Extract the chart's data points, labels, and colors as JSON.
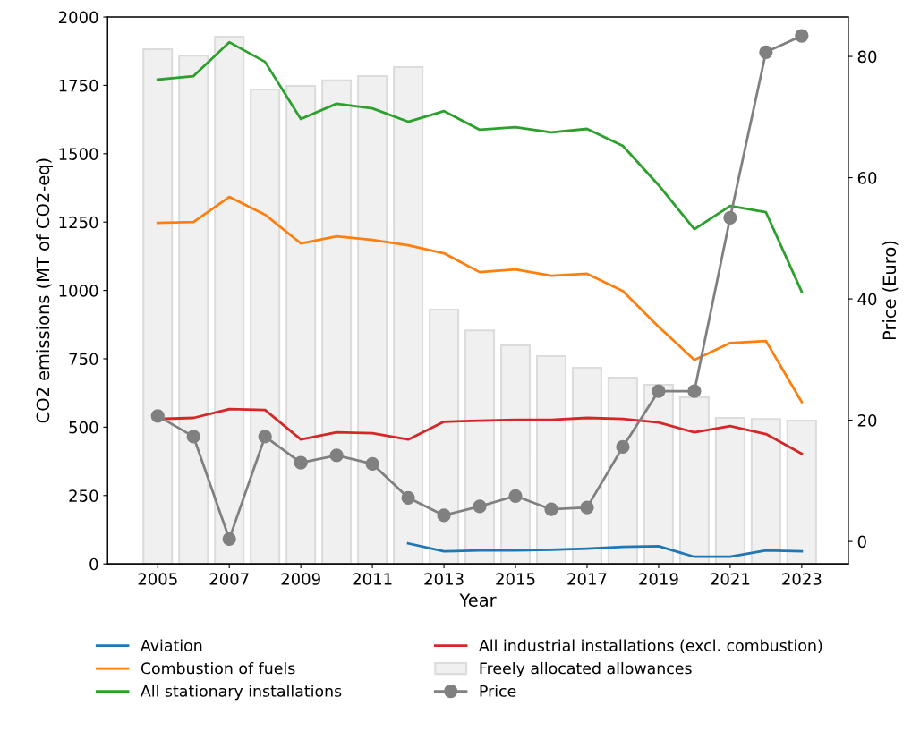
{
  "chart_data": {
    "type": "line",
    "xlabel": "Year",
    "ylabel": "CO2 emissions (MT of CO2-eq)",
    "y2label": "Price (Euro)",
    "x": [
      2005,
      2006,
      2007,
      2008,
      2009,
      2010,
      2011,
      2012,
      2013,
      2014,
      2015,
      2016,
      2017,
      2018,
      2019,
      2020,
      2021,
      2022,
      2023
    ],
    "xlim": [
      2003.6,
      2024.3
    ],
    "xticks": [
      2005,
      2007,
      2009,
      2011,
      2013,
      2015,
      2017,
      2019,
      2021,
      2023
    ],
    "ylim": [
      0,
      2000
    ],
    "yticks": [
      0,
      250,
      500,
      750,
      1000,
      1250,
      1500,
      1750,
      2000
    ],
    "y2lim": [
      -3.7,
      86.5
    ],
    "y2ticks": [
      0,
      20,
      40,
      60,
      80
    ],
    "grid": false,
    "legend": "bottom",
    "series": [
      {
        "name": "Freely allocated allowances",
        "type": "bar",
        "color": "#f0f0f0",
        "values": [
          1882,
          1859,
          1928,
          1735,
          1748,
          1768,
          1784,
          1817,
          930,
          854,
          799,
          760,
          717,
          681,
          655,
          609,
          534,
          530,
          524
        ]
      },
      {
        "name": "Aviation",
        "color": "#1f77b4",
        "values": [
          null,
          null,
          null,
          null,
          null,
          null,
          null,
          75,
          46,
          49,
          49,
          52,
          56,
          62,
          65,
          26,
          26,
          49,
          46
        ]
      },
      {
        "name": "Combustion of fuels",
        "color": "#ff7f0e",
        "values": [
          1247,
          1250,
          1342,
          1277,
          1172,
          1198,
          1185,
          1165,
          1136,
          1067,
          1077,
          1054,
          1061,
          998,
          867,
          746,
          808,
          815,
          592
        ]
      },
      {
        "name": "All stationary installations",
        "color": "#2ca02c",
        "values": [
          1771,
          1784,
          1908,
          1836,
          1627,
          1683,
          1666,
          1617,
          1656,
          1588,
          1597,
          1578,
          1591,
          1529,
          1385,
          1224,
          1309,
          1286,
          995
        ]
      },
      {
        "name": "All industrial installations (excl. combustion)",
        "color": "#d62728",
        "values": [
          530,
          534,
          566,
          563,
          455,
          481,
          478,
          455,
          520,
          524,
          527,
          527,
          534,
          530,
          517,
          481,
          504,
          475,
          403
        ]
      },
      {
        "name": "Price",
        "axis": "y2",
        "marker": "circle",
        "color": "#808080",
        "values": [
          20.7,
          17.3,
          0.4,
          17.3,
          13.0,
          14.2,
          12.8,
          7.2,
          4.3,
          5.8,
          7.5,
          5.3,
          5.6,
          15.6,
          24.8,
          24.8,
          53.4,
          80.7,
          83.4
        ]
      }
    ]
  }
}
